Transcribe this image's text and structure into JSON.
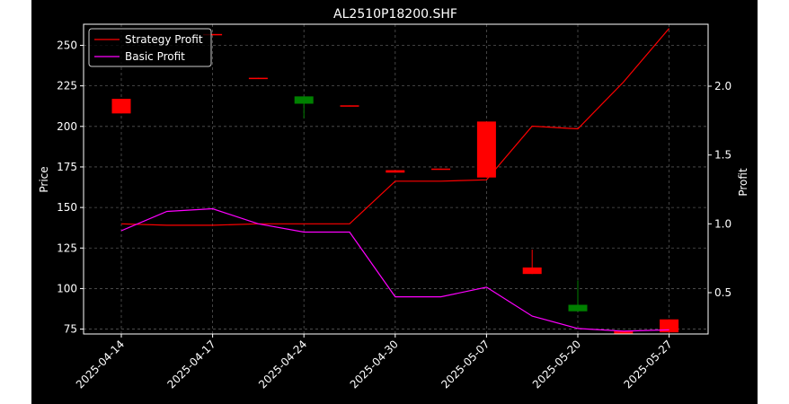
{
  "chart_data": {
    "type": "candlestick+line",
    "title": "AL2510P18200.SHF",
    "xlabel": "",
    "ylabel_left": "Price",
    "ylabel_right": "Profit",
    "x_tick_labels": [
      "2025-04-14",
      "2025-04-17",
      "2025-04-24",
      "2025-04-30",
      "2025-05-07",
      "2025-05-20",
      "2025-05-27"
    ],
    "ylim_left": [
      72,
      263
    ],
    "ylim_right": [
      0.2,
      2.45
    ],
    "yticks_left": [
      75,
      100,
      125,
      150,
      175,
      200,
      225,
      250
    ],
    "yticks_right": [
      0.5,
      1.0,
      1.5,
      2.0
    ],
    "grid": true,
    "legend_placement": "top-left",
    "colors": {
      "up": "#008000",
      "down": "#ff0000",
      "strategy": "#ff0000",
      "basic": "#ff00ff",
      "background": "#000000",
      "grid": "#555555"
    },
    "candles": [
      {
        "i": 0,
        "open": 217,
        "close": 208,
        "high": 217,
        "low": 208
      },
      {
        "i": 2,
        "open": 257,
        "close": 256.5,
        "high": 257,
        "low": 256.5
      },
      {
        "i": 3,
        "open": 230,
        "close": 229.5,
        "high": 230,
        "low": 229.5
      },
      {
        "i": 4,
        "open": 214,
        "close": 218.5,
        "high": 218.5,
        "low": 205
      },
      {
        "i": 5,
        "open": 213,
        "close": 212.5,
        "high": 213,
        "low": 212.5
      },
      {
        "i": 6,
        "open": 173,
        "close": 171.5,
        "high": 173,
        "low": 171.5
      },
      {
        "i": 7,
        "open": 174,
        "close": 173.5,
        "high": 174,
        "low": 173.5
      },
      {
        "i": 8,
        "open": 203,
        "close": 168.5,
        "high": 203,
        "low": 168.5
      },
      {
        "i": 9,
        "open": 113,
        "close": 109,
        "high": 124,
        "low": 109
      },
      {
        "i": 10,
        "open": 86,
        "close": 90,
        "high": 105,
        "low": 86
      },
      {
        "i": 11,
        "open": 74,
        "close": 72,
        "high": 74,
        "low": 72
      },
      {
        "i": 12,
        "open": 81,
        "close": 73,
        "high": 81,
        "low": 73
      }
    ],
    "series": [
      {
        "name": "Strategy Profit",
        "axis": "right",
        "values": [
          1.0,
          0.99,
          0.99,
          1.0,
          1.0,
          1.0,
          1.31,
          1.31,
          1.32,
          1.71,
          1.69,
          2.03,
          2.42
        ]
      },
      {
        "name": "Basic Profit",
        "axis": "right",
        "values": [
          0.95,
          1.09,
          1.11,
          1.0,
          0.94,
          0.94,
          0.47,
          0.47,
          0.54,
          0.33,
          0.24,
          0.22,
          0.23
        ]
      }
    ]
  }
}
